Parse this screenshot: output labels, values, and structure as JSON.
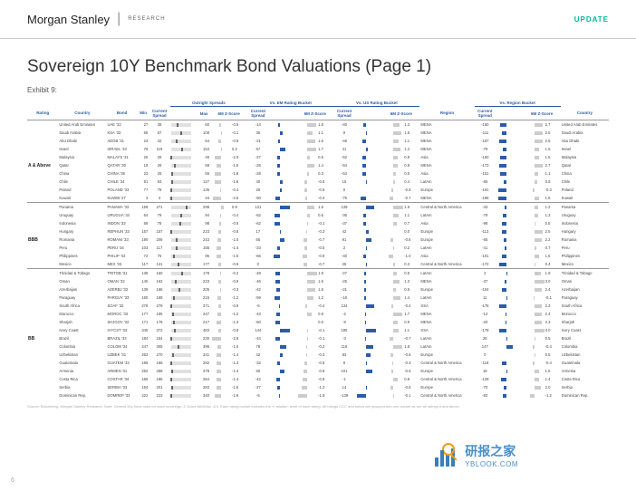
{
  "brand": {
    "name": "Morgan Stanley",
    "sub": "RESEARCH"
  },
  "update_label": "UPDATE",
  "title": "Sovereign 10Y Benchmark Bond Valuations (Page 1)",
  "exhibit": "Exhibit 9:",
  "page_num": "6",
  "group_headers": [
    "Outright Spreads",
    "Vs. EM Rating Bucket",
    "Vs. US Rating Bucket",
    "Vs. Region Bucket"
  ],
  "cols": [
    "Rating",
    "Country",
    "Bond",
    "Min",
    "Current Spread",
    "Max",
    "6M Z-Score",
    "Current Spread",
    "6M Z-Score",
    "Current Spread",
    "6M Z-Score",
    "Region",
    "Current Spread",
    "6M Z-Score",
    "Country"
  ],
  "footnote": "Source: Bloomberg, Morgan Stanley Research. Note: Closest 10y bond used for each sovereign. Z-Score Min/Max -4/4. Each rating bucket includes the +/-middle/- level of each rating. All ratings CCC and below are grouped into one bucket as are all ratings A and above",
  "logo": {
    "cn": "研报之家",
    "en": "YBLOOK.COM"
  },
  "colors": {
    "blue": "#2a5ca8",
    "gray": "#ccc"
  },
  "rating_groups": [
    {
      "rating": "A & Above",
      "rows": [
        {
          "country": "United Arab Emirates",
          "bond": "UAE '32",
          "min": 27,
          "cs": 38,
          "max": 60,
          "z1": -0.5,
          "cs2": -14,
          "z2": 1.8,
          "cs3": -40,
          "z3": 1.3,
          "region": "MENA",
          "cs4": -160,
          "z4": 2.7,
          "c2": "United Arab Emirates"
        },
        {
          "country": "Saudi Arabia",
          "bond": "KSA '33",
          "min": 65,
          "cs": 87,
          "max": 108,
          "z1": -0.1,
          "cs2": 35,
          "z2": 1.1,
          "cs3": 9,
          "z3": 1.5,
          "region": "MENA",
          "cs4": -111,
          "z4": 2.5,
          "c2": "Saudi Arabia"
        },
        {
          "country": "Abu Dhabi",
          "bond": "ADGB '31",
          "min": 23,
          "cs": 32,
          "max": 54,
          "z1": -0.9,
          "cs2": -21,
          "z2": 1.6,
          "cs3": -46,
          "z3": 1.1,
          "region": "MENA",
          "cs4": -167,
          "z4": 2.6,
          "c2": "Abu Dhabi"
        },
        {
          "country": "Israel",
          "bond": "ISRAEL '33",
          "min": 79,
          "cs": 119,
          "max": 153,
          "z1": 0.2,
          "cs2": 67,
          "z2": 1.7,
          "cs3": 41,
          "z3": 1.4,
          "region": "MENA",
          "cs4": -79,
          "z4": 1.5,
          "c2": "Israel"
        },
        {
          "country": "Malaysia",
          "bond": "MALAYS '31",
          "min": 26,
          "cs": 26,
          "max": 46,
          "z1": -2.0,
          "cs2": -27,
          "z2": 0.5,
          "cs3": -52,
          "z3": 0.8,
          "region": "Asia",
          "cs4": -150,
          "z4": 1.5,
          "c2": "Malaysia"
        },
        {
          "country": "Qatar",
          "bond": "QATAR '30",
          "min": 19,
          "cs": 26,
          "max": 58,
          "z1": -1.5,
          "cs2": -26,
          "z2": 1.4,
          "cs3": -54,
          "z3": 0.9,
          "region": "MENA",
          "cs4": -173,
          "z4": 2.7,
          "c2": "Qatar"
        },
        {
          "country": "China",
          "bond": "CHINA '39",
          "min": 23,
          "cs": 25,
          "max": 55,
          "z1": -1.8,
          "cs2": -28,
          "z2": 0.3,
          "cs3": -53,
          "z3": 0.5,
          "region": "Asia",
          "cs4": -151,
          "z4": 1.1,
          "c2": "China"
        },
        {
          "country": "Chile",
          "bond": "CHILE '34",
          "min": 91,
          "cs": 93,
          "max": 127,
          "z1": -1.8,
          "cs2": 40,
          "z2": -0.6,
          "cs3": 15,
          "z3": 0.4,
          "region": "LatAm",
          "cs4": -65,
          "z4": 0.8,
          "c2": "Chile"
        },
        {
          "country": "Poland",
          "bond": "POLAND '33",
          "min": 77,
          "cs": 79,
          "max": 135,
          "z1": -0.4,
          "cs2": 26,
          "z2": -0.5,
          "cs3": 0,
          "z3": -0.5,
          "region": "Europe",
          "cs4": -191,
          "z4": -0.3,
          "c2": "Poland"
        },
        {
          "country": "Kuwait",
          "bond": "KUWIB '27",
          "min": 3,
          "cs": 3,
          "max": 44,
          "z1": -2.6,
          "cs2": -50,
          "z2": -0.4,
          "cs3": -75,
          "z3": -0.7,
          "region": "MENA",
          "cs4": -196,
          "z4": 1.6,
          "c2": "Kuwait"
        }
      ]
    },
    {
      "rating": "BBB",
      "rows": [
        {
          "country": "Panama",
          "bond": "PANAMA '33",
          "min": 159,
          "cs": 271,
          "max": 298,
          "z1": 0.9,
          "cs2": 131,
          "z2": 1.5,
          "cs3": 139,
          "z3": 1.9,
          "region": "Central & North America",
          "cs4": -43,
          "z4": 1.2,
          "c2": "Panama"
        },
        {
          "country": "Uruguay",
          "bond": "URUGUA '34",
          "min": 64,
          "cs": 79,
          "max": 94,
          "z1": -0.4,
          "cs2": -62,
          "z2": 0.5,
          "cs3": -36,
          "z3": 1.1,
          "region": "LatAm",
          "cs4": -79,
          "z4": 1.3,
          "c2": "Uruguay"
        },
        {
          "country": "Indonesia",
          "bond": "INDON '33",
          "min": 59,
          "cs": 78,
          "max": 98,
          "z1": -0.6,
          "cs2": -62,
          "z2": -0.1,
          "cs3": -37,
          "z3": 0.7,
          "region": "Asia",
          "cs4": -98,
          "z4": 0.5,
          "c2": "Indonesia"
        },
        {
          "country": "Hungary",
          "bond": "REPHUN '33",
          "min": 157,
          "cs": 157,
          "max": 223,
          "z1": -0.8,
          "cs2": 17,
          "z2": -0.3,
          "cs3": 42,
          "z3": 0.0,
          "region": "Europe",
          "cs4": -113,
          "z4": 2.5,
          "c2": "Hungary"
        },
        {
          "country": "Romania",
          "bond": "ROMANI '33",
          "min": 190,
          "cs": 206,
          "max": 243,
          "z1": -1.0,
          "cs2": 65,
          "z2": -0.7,
          "cs3": 91,
          "z3": -0.6,
          "region": "Europe",
          "cs4": -65,
          "z4": 2.2,
          "c2": "Romania"
        },
        {
          "country": "Peru",
          "bond": "PERU '34",
          "min": 103,
          "cs": 117,
          "max": 155,
          "z1": -1.4,
          "cs2": -23,
          "z2": -0.5,
          "cs3": 2,
          "z3": 0.2,
          "region": "LatAm",
          "cs4": -41,
          "z4": 0.7,
          "c2": "Peru"
        },
        {
          "country": "Philippines",
          "bond": "PHILIP '33",
          "min": 72,
          "cs": 75,
          "max": 95,
          "z1": -1.5,
          "cs2": -66,
          "z2": -0.9,
          "cs3": -40,
          "z3": -1.0,
          "region": "Asia",
          "cs4": -101,
          "z4": 1.6,
          "c2": "Philippines"
        },
        {
          "country": "Mexico",
          "bond": "MEX '33",
          "min": 117,
          "cs": 141,
          "max": 177,
          "z1": -0.9,
          "cs2": 0,
          "z2": -0.7,
          "cs3": 26,
          "z3": 0.3,
          "region": "Central & North America",
          "cs4": -172,
          "z4": 0.4,
          "c2": "Mexico"
        }
      ]
    },
    {
      "rating": "BB",
      "rows": [
        {
          "country": "Trinidad & Tobago",
          "bond": "TRITOB '31",
          "min": 138,
          "cs": 160,
          "max": 178,
          "z1": -0.2,
          "cs2": -48,
          "z2": 1.9,
          "cs3": -27,
          "z3": 0.6,
          "region": "LatAm",
          "cs4": 2,
          "z4": 1.9,
          "c2": "Trinidad & Tobago"
        },
        {
          "country": "Oman",
          "bond": "OMAN '32",
          "min": 140,
          "cs": 162,
          "max": 223,
          "z1": -0.9,
          "cs2": -46,
          "z2": 1.6,
          "cs3": -25,
          "z3": 1.3,
          "region": "MENA",
          "cs4": -37,
          "z4": 3.0,
          "c2": "Oman"
        },
        {
          "country": "Azerbaijan",
          "bond": "AZERBJ '32",
          "min": 139,
          "cs": 166,
          "max": 205,
          "z1": -0.3,
          "cs2": -42,
          "z2": 1.6,
          "cs3": -21,
          "z3": 0.5,
          "region": "Europe",
          "cs4": -104,
          "z4": 2.4,
          "c2": "Azerbaijan"
        },
        {
          "country": "Paraguay",
          "bond": "PARGUY '33",
          "min": 160,
          "cs": 169,
          "max": 215,
          "z1": -1.2,
          "cs2": -59,
          "z2": 1.2,
          "cs3": -18,
          "z3": 1.4,
          "region": "LatAm",
          "cs4": 11,
          "z4": -0.1,
          "c2": "Paraguay"
        },
        {
          "country": "South Africa",
          "bond": "SOAF '32",
          "min": 278,
          "cs": 279,
          "max": 371,
          "z1": -0.9,
          "cs2": -5,
          "z2": -0.4,
          "cs3": 134,
          "z3": -0.4,
          "region": "SSA",
          "cs4": -176,
          "z4": 2.3,
          "c2": "South Africa"
        },
        {
          "country": "Morocco",
          "bond": "MOROC '33",
          "min": 177,
          "cs": 185,
          "max": 247,
          "z1": -1.2,
          "cs2": -43,
          "z2": 0.8,
          "cs3": -2,
          "z3": 1.7,
          "region": "MENA",
          "cs4": -14,
          "z4": 2.4,
          "c2": "Morocco"
        },
        {
          "country": "Sharjah",
          "bond": "SHJGOV '32",
          "min": 171,
          "cs": 178,
          "max": 217,
          "z1": -1.3,
          "cs2": -50,
          "z2": 0.0,
          "cs3": -9,
          "z3": 0.9,
          "region": "MENA",
          "cs4": -20,
          "z4": 2.3,
          "c2": "Sharjah"
        },
        {
          "country": "Ivory Coast",
          "bond": "IVYCST '33",
          "min": 345,
          "cs": 372,
          "max": 483,
          "z1": -0.8,
          "cs2": 144,
          "z2": -0.1,
          "cs3": 185,
          "z3": 1.1,
          "region": "SSA",
          "cs4": -178,
          "z4": 3.0,
          "c2": "Ivory Coast"
        },
        {
          "country": "Brazil",
          "bond": "BRAZIL '33",
          "min": 184,
          "cs": 184,
          "max": 230,
          "z1": -2.8,
          "cs2": -44,
          "z2": -0.1,
          "cs3": -3,
          "z3": -0.7,
          "region": "LatAm",
          "cs4": 26,
          "z4": 0.5,
          "c2": "Brazil"
        },
        {
          "country": "Colombia",
          "bond": "COLOM '34",
          "min": 247,
          "cs": 305,
          "max": 396,
          "z1": -1.0,
          "cs2": 78,
          "z2": -0.2,
          "cs3": 118,
          "z3": 1.8,
          "region": "LatAm",
          "cs4": 147,
          "z4": -0.4,
          "c2": "Colombia"
        },
        {
          "country": "Uzbekistan",
          "bond": "UZBEK '31",
          "min": 263,
          "cs": 270,
          "max": 341,
          "z1": -1.4,
          "cs2": 42,
          "z2": -0.3,
          "cs3": 83,
          "z3": -0.6,
          "region": "Europe",
          "cs4": 0,
          "z4": 0.5,
          "c2": "Uzbekistan"
        },
        {
          "country": "Guatemala",
          "bond": "GUATEM '33",
          "min": 195,
          "cs": 196,
          "max": 282,
          "z1": -1.3,
          "cs2": -32,
          "z2": -0.5,
          "cs3": 9,
          "z3": -0.3,
          "region": "Central & North America",
          "cs4": -118,
          "z4": -0.4,
          "c2": "Guatemala"
        },
        {
          "country": "Armenia",
          "bond": "ARMEN '31",
          "min": 282,
          "cs": 288,
          "max": 378,
          "z1": -1.4,
          "cs2": 60,
          "z2": -0.8,
          "cs3": 101,
          "z3": -0.5,
          "region": "Europe",
          "cs4": 18,
          "z4": 1.5,
          "c2": "Armenia"
        },
        {
          "country": "Costa Rica",
          "bond": "COSTAR '34",
          "min": 186,
          "cs": 186,
          "max": 264,
          "z1": -1.4,
          "cs2": -42,
          "z2": -0.9,
          "cs3": -1,
          "z3": 0.8,
          "region": "Central & North America",
          "cs4": -128,
          "z4": 1.4,
          "c2": "Costa Rica"
        },
        {
          "country": "Serbia",
          "bond": "SERBIA '33",
          "min": 194,
          "cs": 201,
          "max": 283,
          "z1": -1.5,
          "cs2": -27,
          "z2": -1.2,
          "cs3": 14,
          "z3": -0.6,
          "region": "Europe",
          "cs4": -70,
          "z4": 2.0,
          "c2": "Serbia"
        },
        {
          "country": "Dominican Rep.",
          "bond": "DOMREP '33",
          "min": 222,
          "cs": 223,
          "max": 340,
          "z1": -1.9,
          "cs2": -5,
          "z2": -1.9,
          "cs3": -139,
          "z3": -0.1,
          "region": "Central & North America",
          "cs4": -92,
          "z4": -1.2,
          "c2": "Dominican Rep."
        }
      ]
    }
  ]
}
